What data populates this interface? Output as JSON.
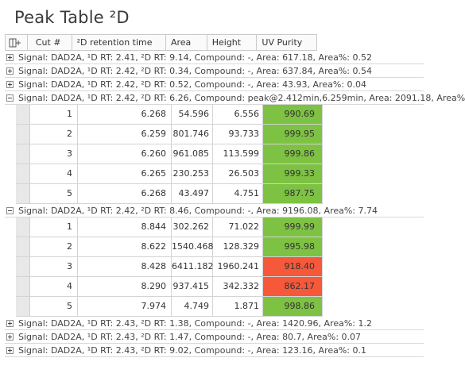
{
  "title": "Peak Table ²D",
  "columns": {
    "cut": "Cut #",
    "rt": "²D retention time",
    "area": "Area",
    "height": "Height",
    "uv": "UV Purity"
  },
  "colors": {
    "good": "#7dc242",
    "bad": "#f6583a"
  },
  "signals": [
    {
      "text": "Signal: DAD2A, ¹D RT: 2.41, ²D RT: 9.14, Compound: -, Area: 617.18, Area%: 0.52",
      "expanded": false,
      "rows": []
    },
    {
      "text": "Signal: DAD2A, ¹D RT: 2.42, ²D RT: 0.34, Compound: -, Area: 637.84, Area%: 0.54",
      "expanded": false,
      "rows": []
    },
    {
      "text": "Signal: DAD2A, ¹D RT: 2.42, ²D RT: 0.52, Compound: -, Area: 43.93, Area%: 0.04",
      "expanded": false,
      "rows": []
    },
    {
      "text": "Signal: DAD2A, ¹D RT: 2.42, ²D RT: 6.26, Compound: peak@2.412min,6.259min, Area: 2091.18, Area%",
      "expanded": true,
      "rows": [
        {
          "cut": "1",
          "rt": "6.268",
          "area": "54.596",
          "height": "6.556",
          "uv": "990.69",
          "status": "good"
        },
        {
          "cut": "2",
          "rt": "6.259",
          "area": "801.746",
          "height": "93.733",
          "uv": "999.95",
          "status": "good"
        },
        {
          "cut": "3",
          "rt": "6.260",
          "area": "961.085",
          "height": "113.599",
          "uv": "999.86",
          "status": "good"
        },
        {
          "cut": "4",
          "rt": "6.265",
          "area": "230.253",
          "height": "26.503",
          "uv": "999.33",
          "status": "good"
        },
        {
          "cut": "5",
          "rt": "6.268",
          "area": "43.497",
          "height": "4.751",
          "uv": "987.75",
          "status": "good"
        }
      ]
    },
    {
      "text": "Signal: DAD2A, ¹D RT: 2.42, ²D RT: 8.46, Compound: -, Area: 9196.08, Area%: 7.74",
      "expanded": true,
      "rows": [
        {
          "cut": "1",
          "rt": "8.844",
          "area": "302.262",
          "height": "71.022",
          "uv": "999.99",
          "status": "good"
        },
        {
          "cut": "2",
          "rt": "8.622",
          "area": "1540.468",
          "height": "128.329",
          "uv": "995.98",
          "status": "good"
        },
        {
          "cut": "3",
          "rt": "8.428",
          "area": "6411.182",
          "height": "1960.241",
          "uv": "918.40",
          "status": "bad"
        },
        {
          "cut": "4",
          "rt": "8.290",
          "area": "937.415",
          "height": "342.332",
          "uv": "862.17",
          "status": "bad"
        },
        {
          "cut": "5",
          "rt": "7.974",
          "area": "4.749",
          "height": "1.871",
          "uv": "998.86",
          "status": "good"
        }
      ]
    },
    {
      "text": "Signal: DAD2A, ¹D RT: 2.43, ²D RT: 1.38, Compound: -, Area: 1420.96, Area%: 1.2",
      "expanded": false,
      "rows": []
    },
    {
      "text": "Signal: DAD2A, ¹D RT: 2.43, ²D RT: 1.47, Compound: -, Area: 80.7, Area%: 0.07",
      "expanded": false,
      "rows": []
    },
    {
      "text": "Signal: DAD2A, ¹D RT: 2.43, ²D RT: 9.02, Compound: -, Area: 123.16, Area%: 0.1",
      "expanded": false,
      "rows": []
    }
  ]
}
